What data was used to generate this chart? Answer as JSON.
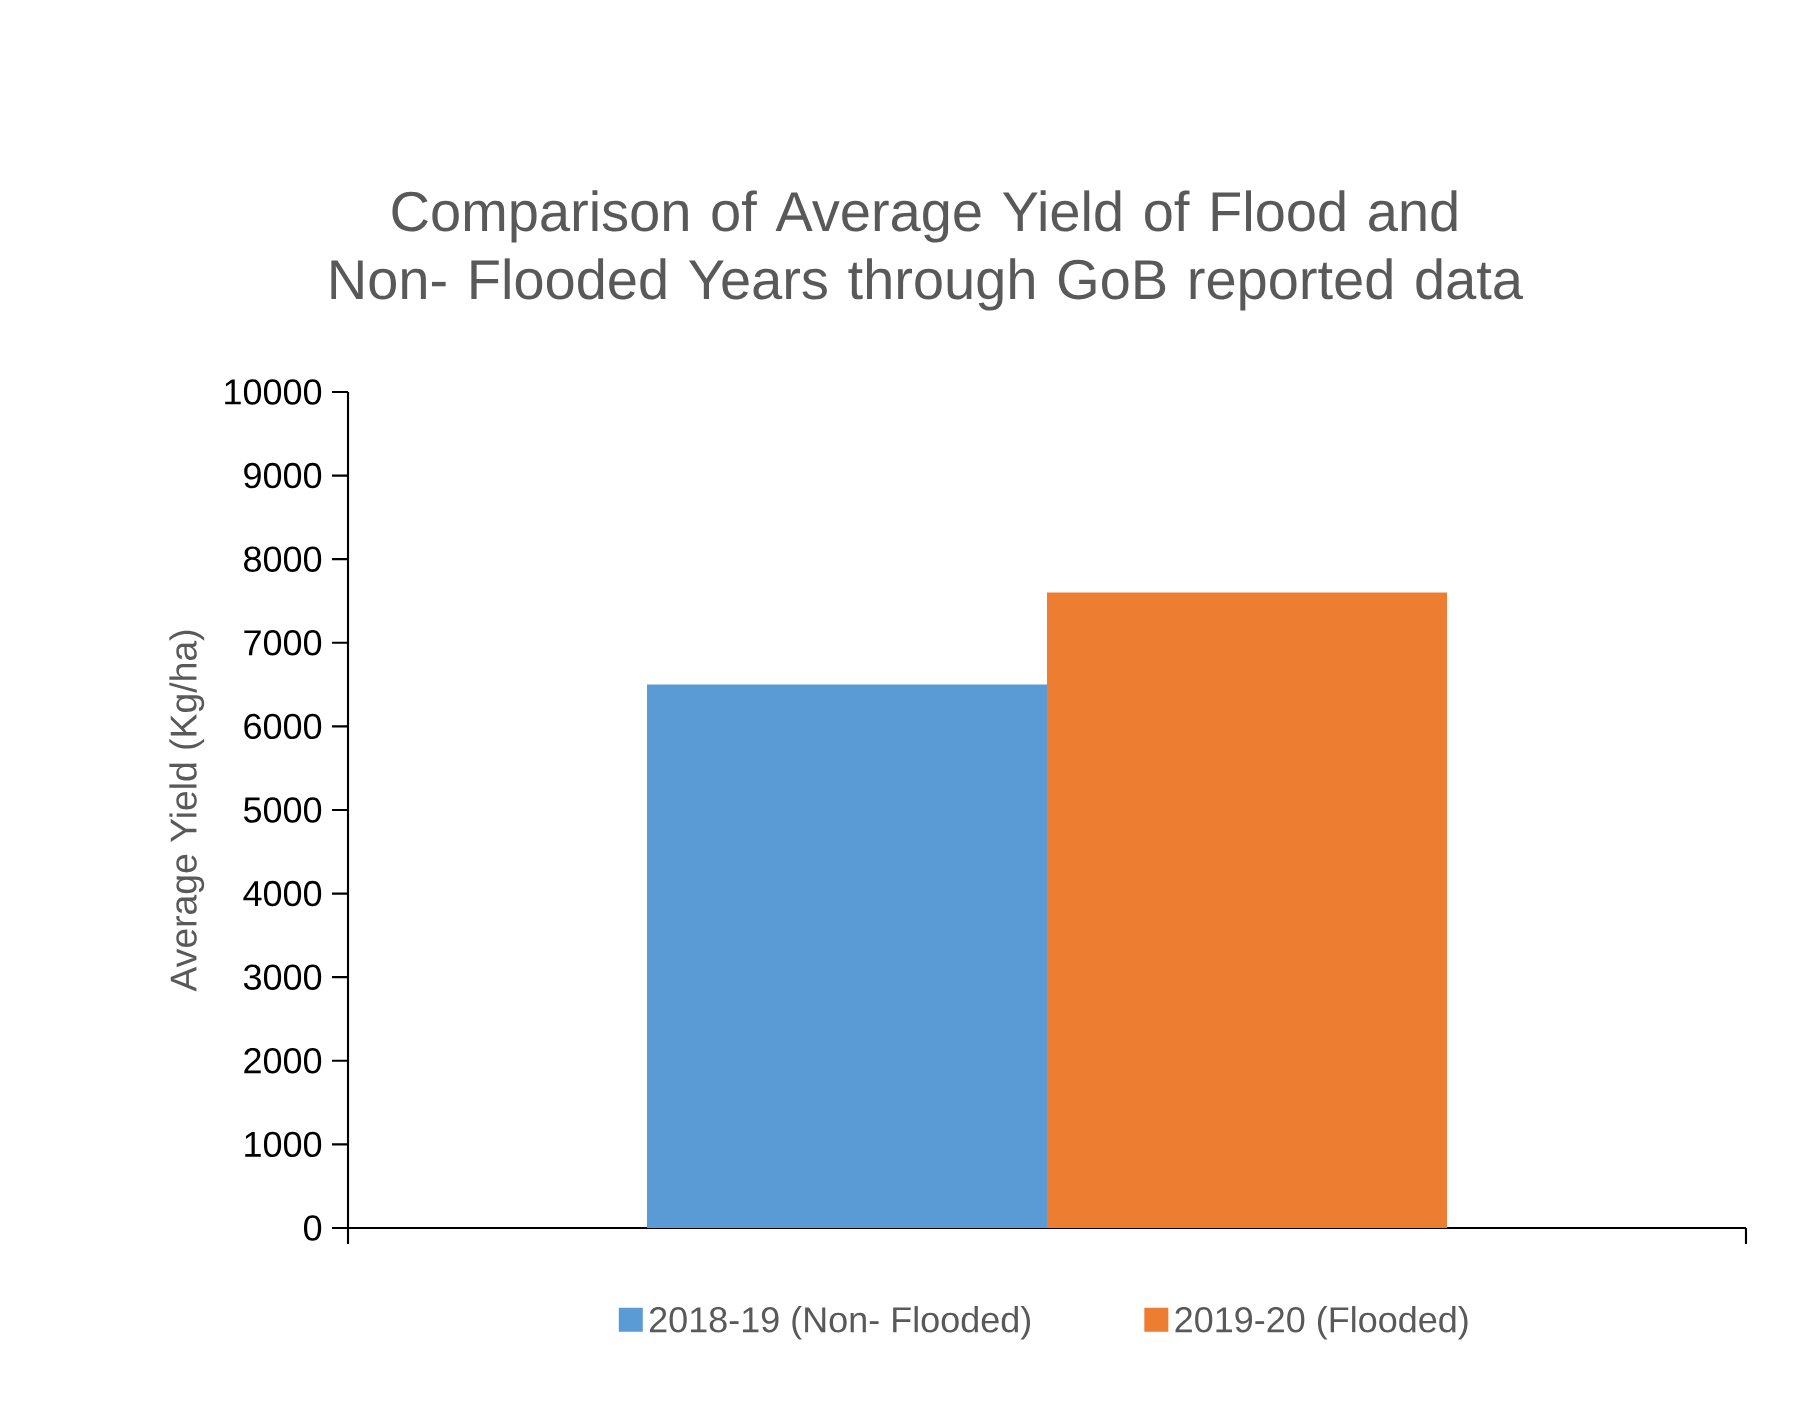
{
  "chart_data": {
    "type": "bar",
    "title": "Comparison of Average Yield of Flood and Non- Flooded Years through GoB reported data",
    "ylabel": "Average Yield  (Kg/ha)",
    "categories": [
      null
    ],
    "series": [
      {
        "name": "2018-19 (Non- Flooded)",
        "color": "#5b9bd5",
        "values": [
          6500
        ]
      },
      {
        "name": "2019-20 (Flooded)",
        "color": "#ed7d31",
        "values": [
          7600
        ]
      }
    ],
    "ylim": [
      0,
      10000
    ],
    "yticks": [
      0,
      1000,
      2000,
      3000,
      4000,
      5000,
      6000,
      7000,
      8000,
      9000,
      10000
    ],
    "legend": "bottom"
  }
}
